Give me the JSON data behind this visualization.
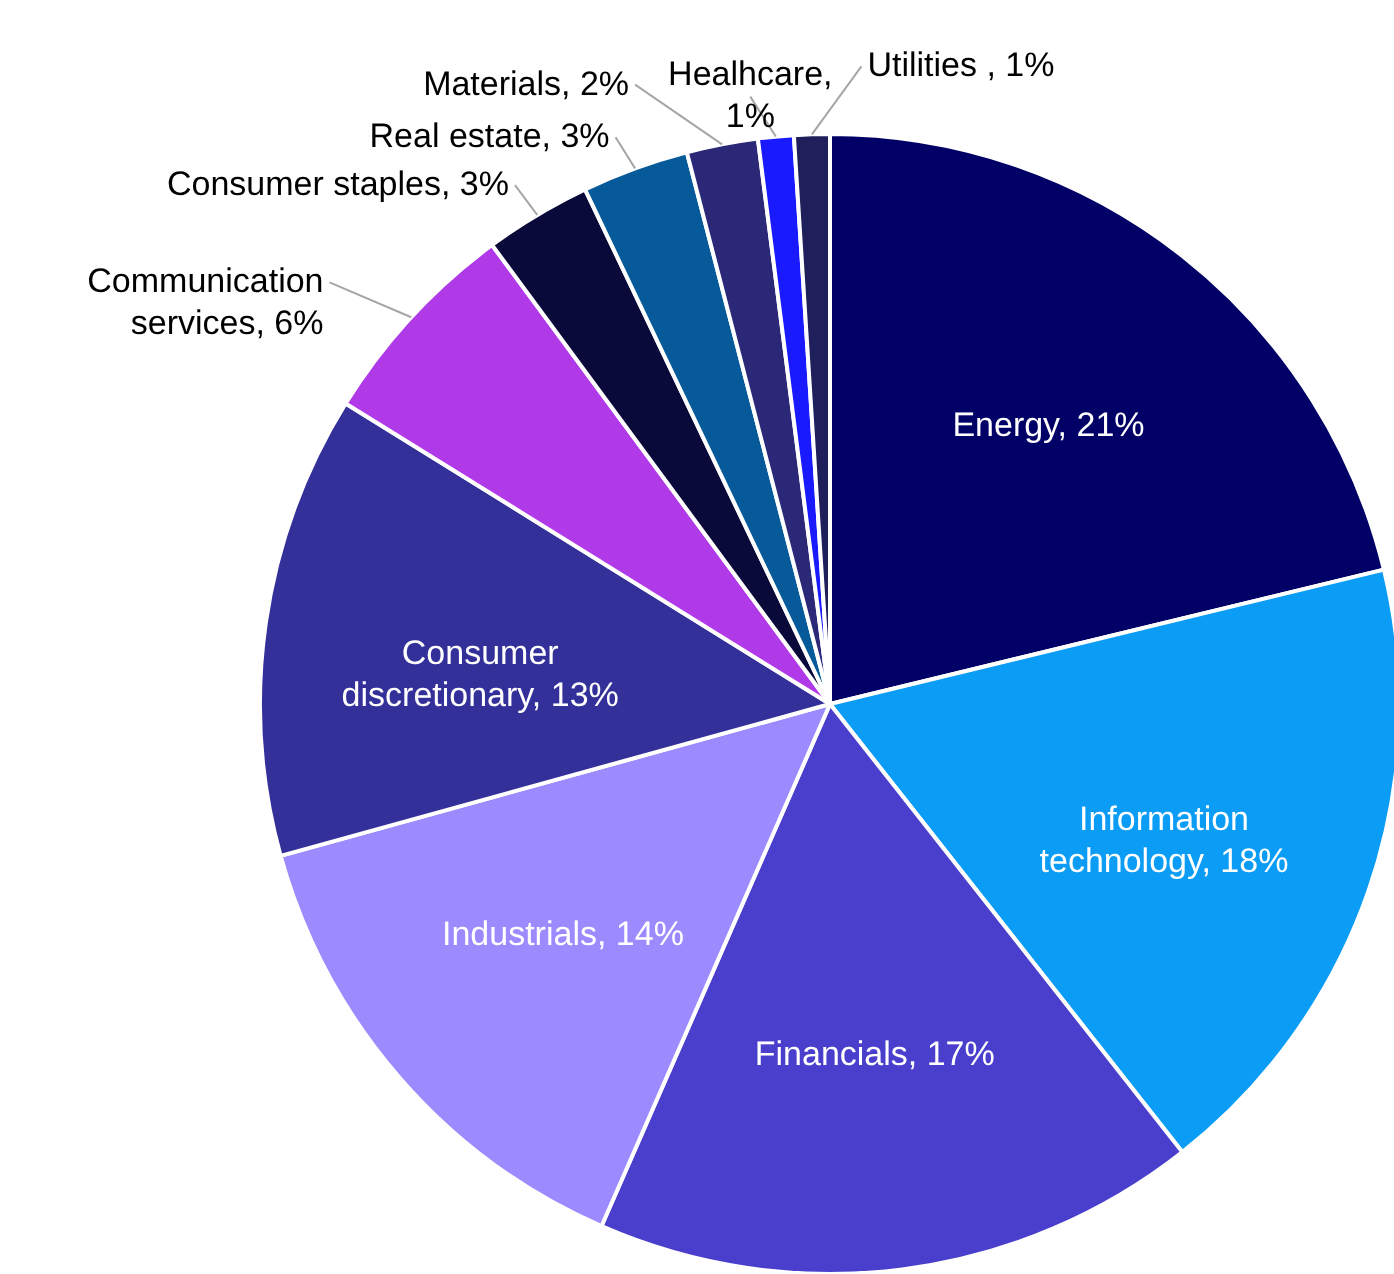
{
  "chart_data": {
    "type": "pie",
    "categories": [
      "Energy",
      "Information technology",
      "Financials",
      "Industrials",
      "Consumer discretionary",
      "Communication services",
      "Consumer staples",
      "Real estate",
      "Materials",
      "Healhcare",
      "Utilities "
    ],
    "values": [
      21,
      18,
      17,
      14,
      13,
      6,
      3,
      3,
      2,
      1,
      1
    ],
    "colors": [
      "#000066",
      "#0b9cf5",
      "#4a3fcc",
      "#9b8bff",
      "#34309a",
      "#b03ae8",
      "#0a0a3a",
      "#075a99",
      "#2b2878",
      "#1a1aff",
      "#1f1f5c"
    ],
    "value_labels": [
      ", 21%",
      ", 18%",
      ", 17%",
      ", 14%",
      ", 13%",
      ", 6%",
      ", 3%",
      ", 3%",
      ", 2%",
      ", 1%",
      ", 1%"
    ]
  }
}
